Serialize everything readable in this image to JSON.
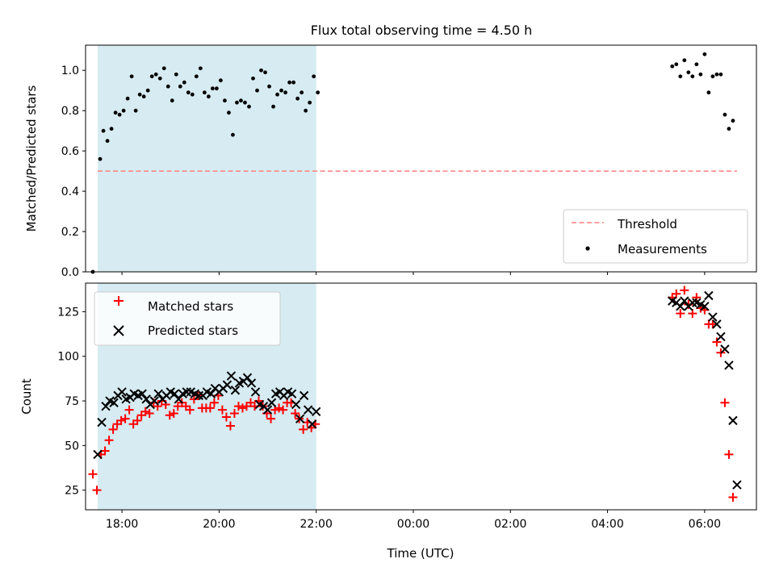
{
  "chart_data": [
    {
      "type": "scatter",
      "title": "Flux total observing time = 4.50 h",
      "xlabel": "",
      "ylabel": "Matched/Predicted stars",
      "ylim": [
        0,
        1.125
      ],
      "yticks": [
        "0.0",
        "0.2",
        "0.4",
        "0.6",
        "0.8",
        "1.0"
      ],
      "xlim": [
        "17:15",
        "07:04"
      ],
      "shaded_span": [
        "17:30",
        "22:00"
      ],
      "legend": {
        "position": "bottom-right",
        "entries": [
          "Threshold",
          "Measurements"
        ]
      },
      "threshold": {
        "name": "Threshold",
        "value": 0.5,
        "x_start": "17:30",
        "x_end": "06:40",
        "color": "#ff7f7f",
        "style": "dashed"
      },
      "series": [
        {
          "name": "Measurements",
          "color": "#000000",
          "marker": "dot",
          "points": [
            [
              "17:24",
              0.0
            ],
            [
              "17:33",
              0.56
            ],
            [
              "17:37",
              0.7
            ],
            [
              "17:42",
              0.65
            ],
            [
              "17:47",
              0.71
            ],
            [
              "17:52",
              0.79
            ],
            [
              "17:57",
              0.78
            ],
            [
              "18:02",
              0.8
            ],
            [
              "18:07",
              0.86
            ],
            [
              "18:12",
              0.97
            ],
            [
              "18:17",
              0.8
            ],
            [
              "18:22",
              0.88
            ],
            [
              "18:27",
              0.87
            ],
            [
              "18:32",
              0.9
            ],
            [
              "18:37",
              0.97
            ],
            [
              "18:42",
              0.98
            ],
            [
              "18:47",
              0.96
            ],
            [
              "18:52",
              1.01
            ],
            [
              "18:57",
              0.92
            ],
            [
              "19:02",
              0.85
            ],
            [
              "19:07",
              0.98
            ],
            [
              "19:12",
              0.92
            ],
            [
              "19:17",
              0.94
            ],
            [
              "19:22",
              0.89
            ],
            [
              "19:27",
              0.88
            ],
            [
              "19:32",
              0.97
            ],
            [
              "19:37",
              1.01
            ],
            [
              "19:42",
              0.89
            ],
            [
              "19:47",
              0.87
            ],
            [
              "19:52",
              0.91
            ],
            [
              "19:57",
              0.91
            ],
            [
              "20:02",
              0.95
            ],
            [
              "20:07",
              0.85
            ],
            [
              "20:12",
              0.79
            ],
            [
              "20:17",
              0.68
            ],
            [
              "20:22",
              0.84
            ],
            [
              "20:27",
              0.85
            ],
            [
              "20:32",
              0.84
            ],
            [
              "20:37",
              0.82
            ],
            [
              "20:42",
              0.96
            ],
            [
              "20:47",
              0.9
            ],
            [
              "20:52",
              1.0
            ],
            [
              "20:57",
              0.99
            ],
            [
              "21:02",
              0.92
            ],
            [
              "21:07",
              0.82
            ],
            [
              "21:12",
              0.88
            ],
            [
              "21:17",
              0.9
            ],
            [
              "21:22",
              0.89
            ],
            [
              "21:27",
              0.94
            ],
            [
              "21:32",
              0.94
            ],
            [
              "21:37",
              0.86
            ],
            [
              "21:42",
              0.89
            ],
            [
              "21:47",
              0.8
            ],
            [
              "21:52",
              0.84
            ],
            [
              "21:57",
              0.97
            ],
            [
              "22:02",
              0.89
            ],
            [
              "05:20",
              1.02
            ],
            [
              "05:25",
              1.03
            ],
            [
              "05:30",
              0.97
            ],
            [
              "05:35",
              1.05
            ],
            [
              "05:40",
              0.99
            ],
            [
              "05:45",
              0.97
            ],
            [
              "05:50",
              1.03
            ],
            [
              "05:55",
              0.98
            ],
            [
              "06:00",
              1.08
            ],
            [
              "06:05",
              0.89
            ],
            [
              "06:10",
              0.97
            ],
            [
              "06:15",
              0.98
            ],
            [
              "06:20",
              0.98
            ],
            [
              "06:25",
              0.78
            ],
            [
              "06:30",
              0.71
            ],
            [
              "06:35",
              0.75
            ]
          ]
        }
      ]
    },
    {
      "type": "scatter",
      "title": "",
      "xlabel": "Time (UTC)",
      "ylabel": "Count",
      "ylim": [
        14,
        141
      ],
      "yticks": [
        "25",
        "50",
        "75",
        "100",
        "125"
      ],
      "xlim": [
        "17:15",
        "07:04"
      ],
      "xticks": [
        "18:00",
        "20:00",
        "22:00",
        "00:00",
        "02:00",
        "04:00",
        "06:00"
      ],
      "shaded_span": [
        "17:30",
        "22:00"
      ],
      "legend": {
        "position": "top-left",
        "entries": [
          "Matched stars",
          "Predicted stars"
        ]
      },
      "series": [
        {
          "name": "Matched stars",
          "color": "#ff0000",
          "marker": "plus",
          "points": [
            [
              "17:24",
              34
            ],
            [
              "17:29",
              25
            ],
            [
              "17:34",
              45
            ],
            [
              "17:39",
              47
            ],
            [
              "17:44",
              53
            ],
            [
              "17:49",
              59
            ],
            [
              "17:54",
              62
            ],
            [
              "17:59",
              64
            ],
            [
              "18:04",
              65
            ],
            [
              "18:09",
              70
            ],
            [
              "18:14",
              62
            ],
            [
              "18:19",
              64
            ],
            [
              "18:24",
              67
            ],
            [
              "18:29",
              69
            ],
            [
              "18:34",
              68
            ],
            [
              "18:39",
              74
            ],
            [
              "18:44",
              72
            ],
            [
              "18:49",
              75
            ],
            [
              "18:54",
              73
            ],
            [
              "18:59",
              67
            ],
            [
              "19:04",
              68
            ],
            [
              "19:09",
              72
            ],
            [
              "19:14",
              74
            ],
            [
              "19:19",
              72
            ],
            [
              "19:24",
              70
            ],
            [
              "19:29",
              76
            ],
            [
              "19:34",
              78
            ],
            [
              "19:39",
              71
            ],
            [
              "19:44",
              71
            ],
            [
              "19:49",
              71
            ],
            [
              "19:54",
              74
            ],
            [
              "19:59",
              78
            ],
            [
              "20:04",
              70
            ],
            [
              "20:09",
              66
            ],
            [
              "20:14",
              61
            ],
            [
              "20:19",
              68
            ],
            [
              "20:24",
              72
            ],
            [
              "20:29",
              71
            ],
            [
              "20:34",
              72
            ],
            [
              "20:39",
              74
            ],
            [
              "20:44",
              72
            ],
            [
              "20:49",
              75
            ],
            [
              "20:54",
              72
            ],
            [
              "20:59",
              68
            ],
            [
              "21:04",
              65
            ],
            [
              "21:09",
              70
            ],
            [
              "21:14",
              71
            ],
            [
              "21:19",
              70
            ],
            [
              "21:24",
              74
            ],
            [
              "21:29",
              74
            ],
            [
              "21:34",
              68
            ],
            [
              "21:39",
              65
            ],
            [
              "21:44",
              59
            ],
            [
              "21:49",
              63
            ],
            [
              "21:54",
              60
            ],
            [
              "21:59",
              62
            ],
            [
              "05:20",
              133
            ],
            [
              "05:25",
              135
            ],
            [
              "05:30",
              124
            ],
            [
              "05:35",
              137
            ],
            [
              "05:40",
              129
            ],
            [
              "05:45",
              124
            ],
            [
              "05:50",
              133
            ],
            [
              "05:55",
              127
            ],
            [
              "06:00",
              126
            ],
            [
              "06:05",
              118
            ],
            [
              "06:10",
              118
            ],
            [
              "06:15",
              108
            ],
            [
              "06:20",
              102
            ],
            [
              "06:25",
              74
            ],
            [
              "06:30",
              45
            ],
            [
              "06:35",
              21
            ]
          ]
        },
        {
          "name": "Predicted stars",
          "color": "#000000",
          "marker": "x",
          "points": [
            [
              "17:30",
              45
            ],
            [
              "17:35",
              63
            ],
            [
              "17:40",
              72
            ],
            [
              "17:45",
              75
            ],
            [
              "17:50",
              74
            ],
            [
              "17:55",
              78
            ],
            [
              "18:00",
              80
            ],
            [
              "18:05",
              76
            ],
            [
              "18:10",
              77
            ],
            [
              "18:15",
              79
            ],
            [
              "18:20",
              78
            ],
            [
              "18:25",
              79
            ],
            [
              "18:30",
              76
            ],
            [
              "18:35",
              73
            ],
            [
              "18:40",
              75
            ],
            [
              "18:45",
              79
            ],
            [
              "18:50",
              76
            ],
            [
              "18:55",
              78
            ],
            [
              "19:00",
              80
            ],
            [
              "19:05",
              79
            ],
            [
              "19:10",
              76
            ],
            [
              "19:15",
              79
            ],
            [
              "19:20",
              80
            ],
            [
              "19:25",
              80
            ],
            [
              "19:30",
              79
            ],
            [
              "19:35",
              78
            ],
            [
              "19:40",
              78
            ],
            [
              "19:45",
              80
            ],
            [
              "19:50",
              79
            ],
            [
              "19:55",
              82
            ],
            [
              "20:00",
              80
            ],
            [
              "20:05",
              82
            ],
            [
              "20:10",
              84
            ],
            [
              "20:15",
              89
            ],
            [
              "20:20",
              81
            ],
            [
              "20:25",
              85
            ],
            [
              "20:30",
              86
            ],
            [
              "20:35",
              88
            ],
            [
              "20:40",
              85
            ],
            [
              "20:45",
              80
            ],
            [
              "20:50",
              73
            ],
            [
              "20:55",
              72
            ],
            [
              "21:00",
              70
            ],
            [
              "21:05",
              74
            ],
            [
              "21:10",
              79
            ],
            [
              "21:15",
              80
            ],
            [
              "21:20",
              78
            ],
            [
              "21:25",
              80
            ],
            [
              "21:30",
              79
            ],
            [
              "21:35",
              73
            ],
            [
              "21:40",
              65
            ],
            [
              "21:45",
              78
            ],
            [
              "21:50",
              70
            ],
            [
              "21:55",
              62
            ],
            [
              "22:00",
              69
            ],
            [
              "05:20",
              131
            ],
            [
              "05:25",
              130
            ],
            [
              "05:30",
              128
            ],
            [
              "05:35",
              131
            ],
            [
              "05:40",
              128
            ],
            [
              "05:45",
              130
            ],
            [
              "05:50",
              130
            ],
            [
              "05:55",
              129
            ],
            [
              "06:00",
              128
            ],
            [
              "06:05",
              134
            ],
            [
              "06:10",
              122
            ],
            [
              "06:15",
              118
            ],
            [
              "06:20",
              111
            ],
            [
              "06:25",
              104
            ],
            [
              "06:30",
              95
            ],
            [
              "06:35",
              64
            ],
            [
              "06:40",
              28
            ]
          ]
        }
      ]
    }
  ]
}
